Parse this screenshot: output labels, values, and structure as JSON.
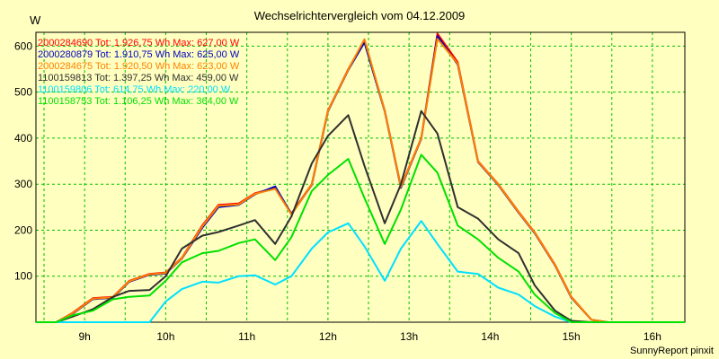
{
  "title": "Wechselrichtervergleich vom 04.12.2009",
  "unit_label": "W",
  "credit": "SunnyReport pinxit",
  "chart_data": {
    "type": "line",
    "title": "Wechselrichtervergleich vom 04.12.2009",
    "ylabel": "W",
    "ylim": [
      0,
      630
    ],
    "y_ticks": [
      100,
      200,
      300,
      400,
      500,
      600
    ],
    "xlim": [
      8.4,
      16.4
    ],
    "x_ticks": [
      {
        "value": 9.0,
        "label": "9h"
      },
      {
        "value": 10.0,
        "label": "10h"
      },
      {
        "value": 11.0,
        "label": "11h"
      },
      {
        "value": 12.0,
        "label": "12h"
      },
      {
        "value": 13.0,
        "label": "13h"
      },
      {
        "value": 14.0,
        "label": "14h"
      },
      {
        "value": 15.0,
        "label": "15h"
      },
      {
        "value": 16.0,
        "label": "16h"
      }
    ],
    "grid": true,
    "legend_position": "top-left",
    "background_color": "#ffffc0",
    "grid_color": "#00c000",
    "x": [
      8.4,
      8.65,
      8.85,
      9.1,
      9.35,
      9.55,
      9.8,
      10.0,
      10.2,
      10.45,
      10.65,
      10.9,
      11.1,
      11.35,
      11.55,
      11.8,
      12.0,
      12.25,
      12.45,
      12.7,
      12.9,
      13.15,
      13.35,
      13.6,
      13.85,
      14.1,
      14.35,
      14.55,
      14.8,
      15.0,
      15.25,
      15.45,
      15.7,
      15.9,
      16.15,
      16.4
    ],
    "series": [
      {
        "name": "2000284690",
        "label": "2000284690 Tot: 1.926,75 Wh Max: 627,00 W",
        "color": "#ff0000",
        "values": [
          0,
          0,
          20,
          52,
          55,
          90,
          105,
          108,
          140,
          210,
          255,
          258,
          280,
          292,
          236,
          300,
          460,
          550,
          612,
          460,
          295,
          400,
          627,
          565,
          350,
          300,
          240,
          195,
          125,
          55,
          5,
          0,
          0,
          0,
          0,
          0
        ]
      },
      {
        "name": "2000280879",
        "label": "2000280879 Tot: 1.910,75 Wh Max: 625,00 W",
        "color": "#0000c0",
        "values": [
          0,
          0,
          18,
          50,
          53,
          88,
          103,
          106,
          138,
          205,
          250,
          255,
          278,
          295,
          235,
          298,
          458,
          548,
          608,
          458,
          292,
          398,
          622,
          560,
          348,
          298,
          238,
          193,
          123,
          53,
          5,
          0,
          0,
          0,
          0,
          0
        ]
      },
      {
        "name": "2000284675",
        "label": "2000284675 Tot: 1.920,50 Wh Max: 623,00 W",
        "color": "#ff8000",
        "values": [
          0,
          0,
          19,
          51,
          54,
          89,
          104,
          107,
          139,
          208,
          253,
          256,
          279,
          290,
          234,
          299,
          459,
          549,
          615,
          459,
          294,
          399,
          616,
          562,
          349,
          299,
          239,
          194,
          124,
          54,
          5,
          0,
          0,
          0,
          0,
          0
        ]
      },
      {
        "name": "1100159813",
        "label": "1100159813 Tot: 1.397,25 Wh Max: 459,00 W",
        "color": "#303030",
        "values": [
          0,
          0,
          12,
          28,
          55,
          68,
          70,
          100,
          160,
          188,
          196,
          210,
          222,
          170,
          230,
          345,
          405,
          450,
          340,
          215,
          300,
          459,
          410,
          250,
          225,
          180,
          150,
          80,
          25,
          3,
          0,
          0,
          0,
          0,
          0,
          0
        ]
      },
      {
        "name": "1100159806",
        "label": "1100159806 Tot: 614,75 Wh Max: 220,00 W",
        "color": "#00e0ff",
        "values": [
          0,
          0,
          0,
          0,
          0,
          0,
          0,
          45,
          72,
          88,
          86,
          100,
          102,
          82,
          100,
          160,
          195,
          215,
          165,
          90,
          160,
          220,
          170,
          110,
          105,
          75,
          60,
          35,
          12,
          0,
          0,
          0,
          0,
          0,
          0,
          0
        ]
      },
      {
        "name": "1100158753",
        "label": "1100158753 Tot: 1.106,25 Wh Max: 364,00 W",
        "color": "#00e000",
        "values": [
          0,
          0,
          15,
          25,
          50,
          55,
          58,
          90,
          130,
          150,
          155,
          172,
          180,
          135,
          185,
          285,
          320,
          355,
          270,
          170,
          245,
          364,
          325,
          210,
          180,
          140,
          110,
          60,
          20,
          0,
          0,
          0,
          0,
          0,
          0,
          0
        ]
      }
    ]
  }
}
